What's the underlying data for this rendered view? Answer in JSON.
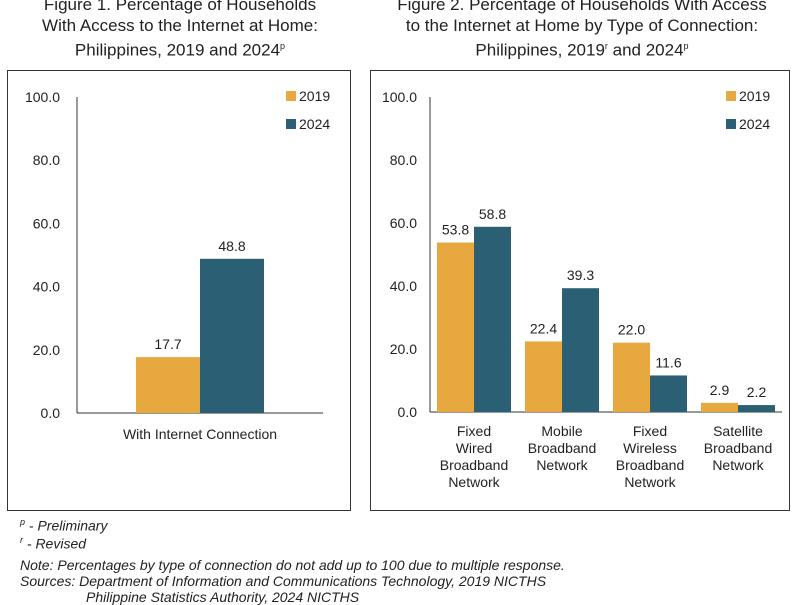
{
  "figure1": {
    "title_lines": [
      "Figure 1. Percentage of Households",
      "With Access to the Internet at Home:",
      "Philippines, 2019 and 2024"
    ],
    "title_sup": "p"
  },
  "figure2": {
    "title_lines": [
      "Figure 2. Percentage of Households With Access",
      "to the Internet at Home by Type of Connection:",
      "Philippines, 2019",
      "and 2024"
    ],
    "title_sup1": "r",
    "title_sup2": "p"
  },
  "colors": {
    "2019": "#E8A840",
    "2024": "#2B5F73"
  },
  "chart_data": [
    {
      "type": "bar",
      "title": "Percentage of Households With Access to the Internet at Home: Philippines, 2019 and 2024",
      "categories": [
        [
          "With Internet Connection"
        ]
      ],
      "series": [
        {
          "name": "2019",
          "values": [
            17.7
          ],
          "labels": [
            "17.7"
          ]
        },
        {
          "name": "2024",
          "values": [
            48.8
          ],
          "labels": [
            "48.8"
          ]
        }
      ],
      "yticks": [
        "0.0",
        "20.0",
        "40.0",
        "60.0",
        "80.0",
        "100.0"
      ],
      "ylim": [
        0,
        100
      ],
      "legend": "top-right",
      "xlabel": "",
      "ylabel": ""
    },
    {
      "type": "bar",
      "title": "Percentage of Households With Access to the Internet at Home by Type of Connection: Philippines, 2019 and 2024",
      "categories": [
        [
          "Fixed",
          "Wired",
          "Broadband",
          "Network"
        ],
        [
          "Mobile",
          "Broadband",
          "Network"
        ],
        [
          "Fixed",
          "Wireless",
          "Broadband",
          "Network"
        ],
        [
          "Satellite",
          "Broadband",
          "Network"
        ]
      ],
      "series": [
        {
          "name": "2019",
          "values": [
            53.8,
            22.4,
            22.0,
            2.9
          ],
          "labels": [
            "53.8",
            "22.4",
            "22.0",
            "2.9"
          ]
        },
        {
          "name": "2024",
          "values": [
            58.8,
            39.3,
            11.6,
            2.2
          ],
          "labels": [
            "58.8",
            "39.3",
            "11.6",
            "2.2"
          ]
        }
      ],
      "yticks": [
        "0.0",
        "20.0",
        "40.0",
        "60.0",
        "80.0",
        "100.0"
      ],
      "ylim": [
        0,
        100
      ],
      "legend": "top-right",
      "xlabel": "",
      "ylabel": ""
    }
  ],
  "notes": {
    "preliminary_sup": "p",
    "preliminary": " - Preliminary",
    "revised_sup": "r",
    "revised": " - Revised",
    "note": "Note: Percentages by type of connection do not add up to 100 due to multiple response.",
    "sources": "Sources: Department of Information and Communications Technology, 2019 NICTHS",
    "sources_cont": "Philippine Statistics Authority, 2024 NICTHS"
  }
}
